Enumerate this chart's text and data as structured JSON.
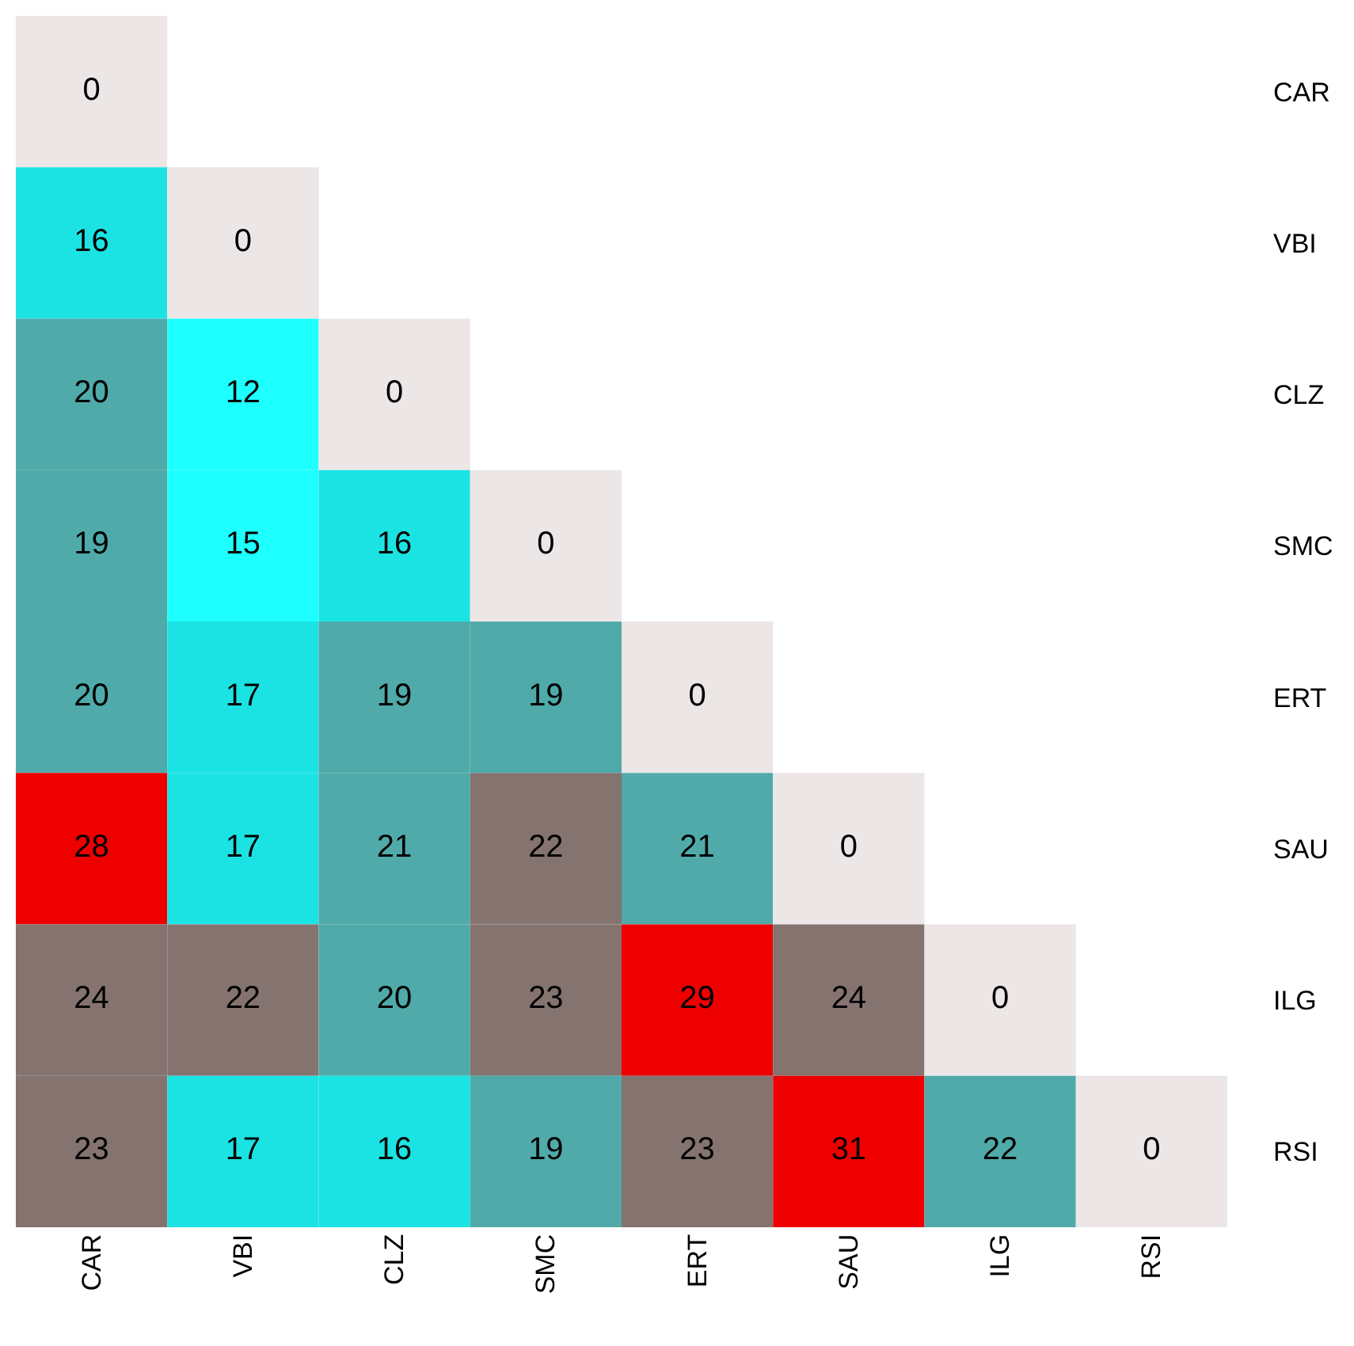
{
  "chart_data": {
    "type": "heatmap",
    "categories": [
      "CAR",
      "VBI",
      "CLZ",
      "SMC",
      "ERT",
      "SAU",
      "ILG",
      "RSI"
    ],
    "y_categories": [
      "CAR",
      "VBI",
      "CLZ",
      "SMC",
      "ERT",
      "SAU",
      "ILG",
      "RSI"
    ],
    "cells": [
      [
        0,
        null,
        null,
        null,
        null,
        null,
        null,
        null
      ],
      [
        16,
        0,
        null,
        null,
        null,
        null,
        null,
        null
      ],
      [
        20,
        12,
        0,
        null,
        null,
        null,
        null,
        null
      ],
      [
        19,
        15,
        16,
        0,
        null,
        null,
        null,
        null
      ],
      [
        20,
        17,
        19,
        19,
        0,
        null,
        null,
        null
      ],
      [
        28,
        17,
        21,
        22,
        21,
        0,
        null,
        null
      ],
      [
        24,
        22,
        20,
        23,
        29,
        24,
        0,
        null
      ],
      [
        23,
        17,
        16,
        19,
        23,
        31,
        22,
        0
      ]
    ],
    "colors": [
      [
        "#ece6e6",
        null,
        null,
        null,
        null,
        null,
        null,
        null
      ],
      [
        "#1ce3e3",
        "#ece6e6",
        null,
        null,
        null,
        null,
        null,
        null
      ],
      [
        "#50aaaa",
        "#1effff",
        "#ece6e6",
        null,
        null,
        null,
        null,
        null
      ],
      [
        "#50aaaa",
        "#1effff",
        "#1ce3e3",
        "#ece6e6",
        null,
        null,
        null,
        null
      ],
      [
        "#50aaaa",
        "#1ce3e3",
        "#50aaaa",
        "#50aaaa",
        "#ece6e6",
        null,
        null,
        null
      ],
      [
        "#ee0000",
        "#1ce3e3",
        "#50aaaa",
        "#857370",
        "#50aaaa",
        "#ece6e6",
        null,
        null
      ],
      [
        "#857370",
        "#857370",
        "#50aaaa",
        "#857370",
        "#ee0000",
        "#857370",
        "#ece6e6",
        null
      ],
      [
        "#857370",
        "#1ce3e3",
        "#1ce3e3",
        "#50aaaa",
        "#857370",
        "#ee0000",
        "#50aaaa",
        "#ece6e6"
      ]
    ],
    "data_labels": true
  }
}
